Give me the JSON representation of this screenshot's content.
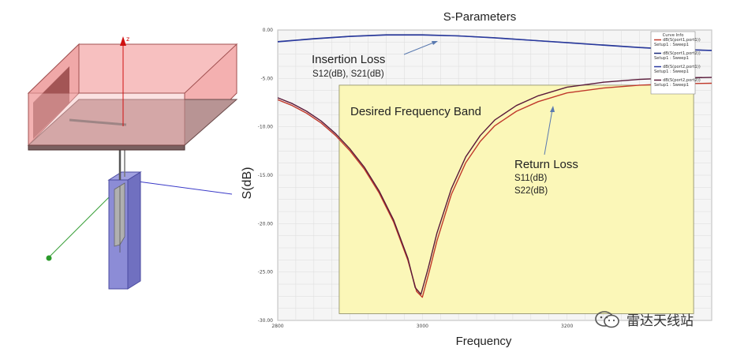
{
  "chart_data": {
    "type": "line",
    "title": "S-Parameters",
    "xlabel": "Frequency",
    "ylabel": "S(dB)",
    "xlim": [
      2800,
      3400
    ],
    "ylim": [
      -30,
      0
    ],
    "x_ticks": [
      "2800",
      "3000",
      "3200"
    ],
    "y_ticks": [
      "0.00",
      "-5.00",
      "-10.00",
      "-15.00",
      "-20.00",
      "-25.00",
      "-30.00"
    ],
    "grid": true,
    "series": [
      {
        "name": "dB(S(port1,port1))",
        "setup": "Setup1 : Sweep1",
        "color": "#c0392b",
        "x": [
          2800,
          2820,
          2840,
          2860,
          2880,
          2900,
          2920,
          2940,
          2960,
          2980,
          2992,
          3000,
          3010,
          3020,
          3040,
          3060,
          3080,
          3100,
          3130,
          3160,
          3200,
          3250,
          3300,
          3350,
          3400
        ],
        "y": [
          -7.2,
          -7.8,
          -8.6,
          -9.6,
          -10.9,
          -12.5,
          -14.4,
          -16.8,
          -19.8,
          -23.8,
          -27.0,
          -27.6,
          -24.8,
          -21.8,
          -17.0,
          -13.7,
          -11.5,
          -9.9,
          -8.4,
          -7.4,
          -6.5,
          -6.0,
          -5.7,
          -5.55,
          -5.5
        ]
      },
      {
        "name": "dB(S(port1,port2))",
        "setup": "Setup1 : Sweep1",
        "color": "#1a2a7a",
        "x": [
          2800,
          2850,
          2900,
          2950,
          3000,
          3050,
          3100,
          3150,
          3200,
          3250,
          3300,
          3350,
          3400
        ],
        "y": [
          -1.2,
          -0.9,
          -0.65,
          -0.5,
          -0.5,
          -0.6,
          -0.8,
          -1.05,
          -1.3,
          -1.55,
          -1.8,
          -2.0,
          -2.1
        ]
      },
      {
        "name": "dB(S(port2,port1))",
        "setup": "Setup1 : Sweep1",
        "color": "#2a3aa0",
        "x": [
          2800,
          2850,
          2900,
          2950,
          3000,
          3050,
          3100,
          3150,
          3200,
          3250,
          3300,
          3350,
          3400
        ],
        "y": [
          -1.22,
          -0.92,
          -0.67,
          -0.52,
          -0.52,
          -0.62,
          -0.82,
          -1.07,
          -1.32,
          -1.57,
          -1.82,
          -2.02,
          -2.12
        ]
      },
      {
        "name": "dB(S(port2,port2))",
        "setup": "Setup1 : Sweep1",
        "color": "#5a1a3a",
        "x": [
          2800,
          2820,
          2840,
          2860,
          2880,
          2900,
          2920,
          2940,
          2960,
          2980,
          2990,
          2998,
          3008,
          3020,
          3040,
          3060,
          3080,
          3100,
          3130,
          3160,
          3200,
          3250,
          3300,
          3350,
          3400
        ],
        "y": [
          -7.0,
          -7.6,
          -8.4,
          -9.4,
          -10.7,
          -12.3,
          -14.2,
          -16.6,
          -19.6,
          -23.6,
          -26.6,
          -27.3,
          -24.6,
          -21.0,
          -16.4,
          -13.1,
          -10.9,
          -9.3,
          -7.8,
          -6.8,
          -5.9,
          -5.4,
          -5.1,
          -4.95,
          -4.9
        ]
      }
    ],
    "band": {
      "x": [
        2885,
        3375
      ],
      "y": [
        -29.3,
        -5.7
      ],
      "color": "#fbf7b8"
    },
    "annotations": {
      "insertion_loss": "Insertion Loss",
      "insertion_loss_sub": "S12(dB), S21(dB)",
      "desired_band": "Desired Frequency Band",
      "return_loss": "Return  Loss",
      "return_loss_sub1": "S11(dB)",
      "return_loss_sub2": "S22(dB)"
    },
    "legend": {
      "title": "Curve Info",
      "placement": "top-right"
    }
  },
  "model_view": {
    "axis_label": "z"
  },
  "watermark": {
    "text": "雷达天线站"
  },
  "colors": {
    "plot_bg": "#f5f5f5",
    "grid": "#dcdcdc",
    "band": "#fbf7b8",
    "box_red": "#f28c8c",
    "box_blue": "#6a6ac8"
  }
}
